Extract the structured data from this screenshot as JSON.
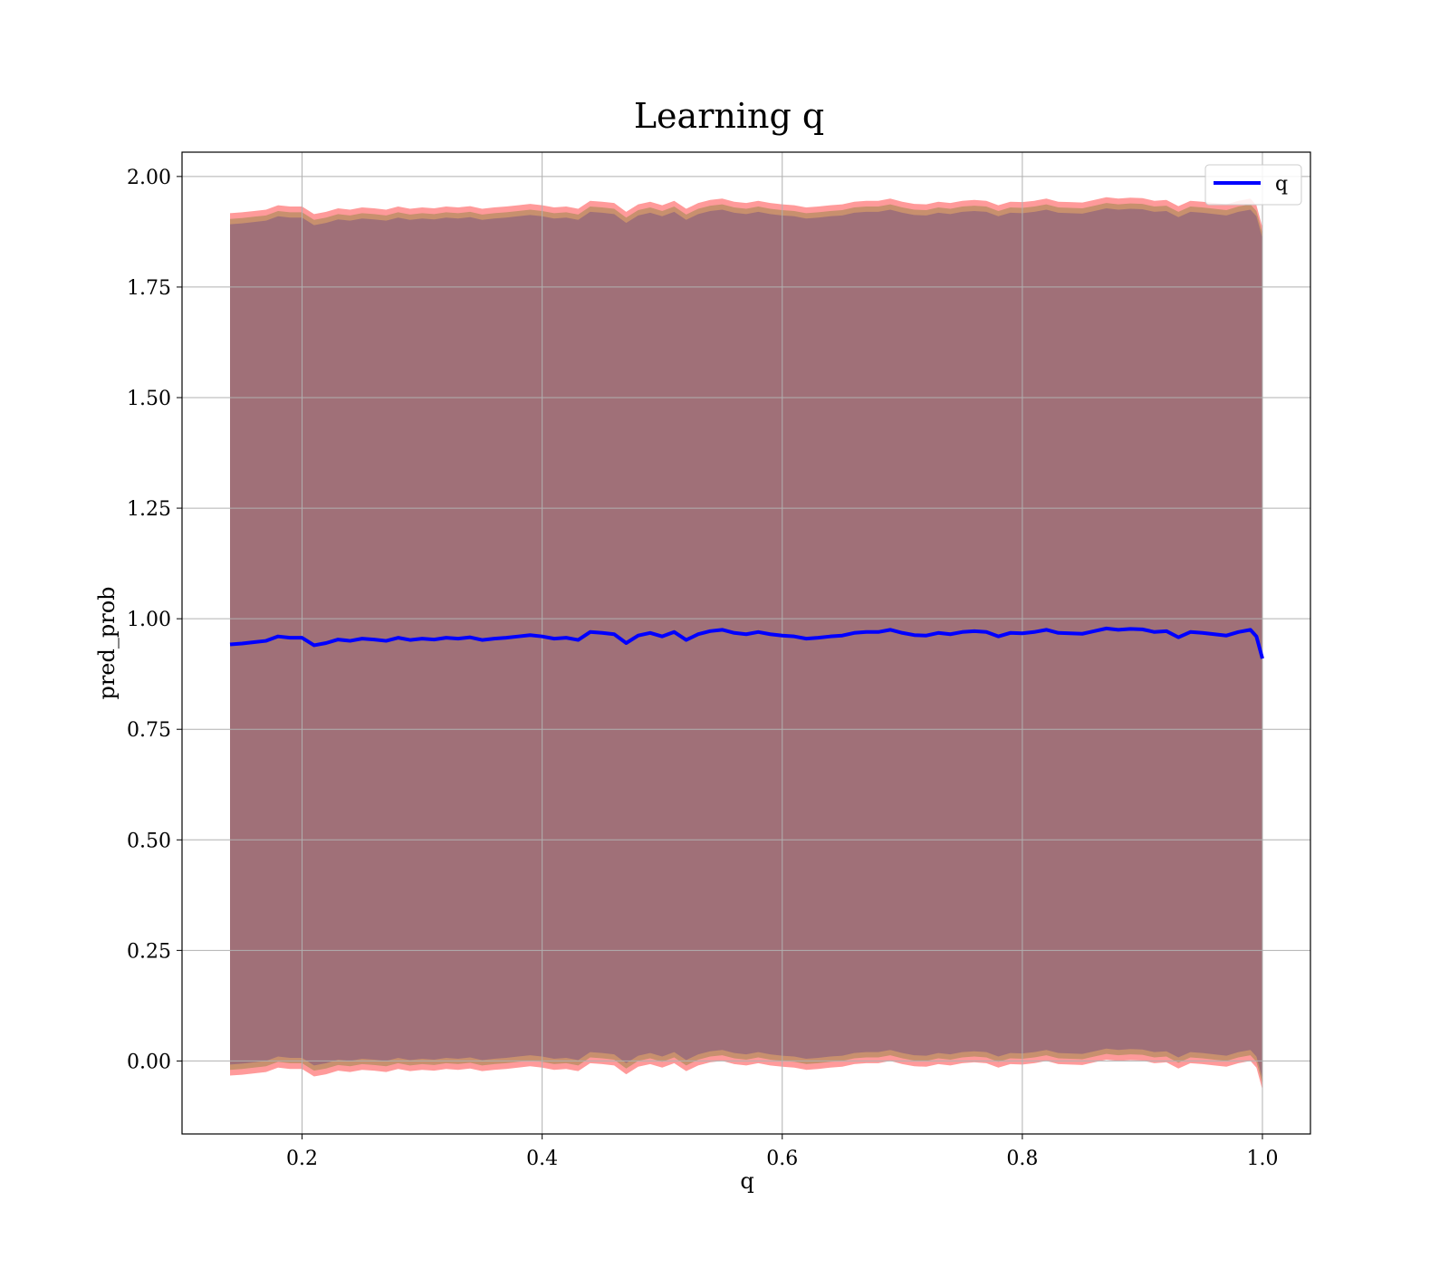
{
  "chart_data": {
    "type": "area",
    "title": "Learning q",
    "xlabel": "q",
    "ylabel": "pred_prob",
    "xlim": [
      0.1,
      1.04
    ],
    "ylim": [
      -0.165,
      2.055
    ],
    "x_ticks": [
      0.2,
      0.4,
      0.6,
      0.8,
      1.0
    ],
    "x_tick_labels": [
      "0.2",
      "0.4",
      "0.6",
      "0.8",
      "1.0"
    ],
    "y_ticks": [
      0.0,
      0.25,
      0.5,
      0.75,
      1.0,
      1.25,
      1.5,
      1.75,
      2.0
    ],
    "y_tick_labels": [
      "0.00",
      "0.25",
      "0.50",
      "0.75",
      "1.00",
      "1.25",
      "1.50",
      "1.75",
      "2.00"
    ],
    "grid": true,
    "legend_position": "top-right",
    "series": [
      {
        "name": "q",
        "color": "#0000ff",
        "x": [
          0.14,
          0.15,
          0.16,
          0.17,
          0.18,
          0.19,
          0.2,
          0.21,
          0.22,
          0.23,
          0.24,
          0.25,
          0.26,
          0.27,
          0.28,
          0.29,
          0.3,
          0.31,
          0.32,
          0.33,
          0.34,
          0.35,
          0.36,
          0.37,
          0.38,
          0.39,
          0.4,
          0.41,
          0.42,
          0.43,
          0.44,
          0.45,
          0.46,
          0.47,
          0.48,
          0.49,
          0.5,
          0.51,
          0.52,
          0.53,
          0.54,
          0.55,
          0.56,
          0.57,
          0.58,
          0.59,
          0.6,
          0.61,
          0.62,
          0.63,
          0.64,
          0.65,
          0.66,
          0.67,
          0.68,
          0.69,
          0.7,
          0.71,
          0.72,
          0.73,
          0.74,
          0.75,
          0.76,
          0.77,
          0.78,
          0.79,
          0.8,
          0.81,
          0.82,
          0.83,
          0.84,
          0.85,
          0.86,
          0.87,
          0.88,
          0.89,
          0.9,
          0.91,
          0.92,
          0.93,
          0.94,
          0.95,
          0.96,
          0.97,
          0.98,
          0.99,
          0.995,
          1.0
        ],
        "y": [
          0.942,
          0.944,
          0.947,
          0.95,
          0.96,
          0.957,
          0.957,
          0.94,
          0.945,
          0.953,
          0.95,
          0.955,
          0.953,
          0.95,
          0.957,
          0.952,
          0.955,
          0.953,
          0.957,
          0.955,
          0.958,
          0.952,
          0.955,
          0.957,
          0.96,
          0.963,
          0.96,
          0.955,
          0.957,
          0.952,
          0.97,
          0.968,
          0.965,
          0.945,
          0.962,
          0.968,
          0.96,
          0.97,
          0.952,
          0.965,
          0.972,
          0.975,
          0.968,
          0.965,
          0.97,
          0.965,
          0.962,
          0.96,
          0.955,
          0.957,
          0.96,
          0.962,
          0.968,
          0.97,
          0.97,
          0.975,
          0.968,
          0.963,
          0.962,
          0.968,
          0.965,
          0.97,
          0.972,
          0.97,
          0.96,
          0.968,
          0.967,
          0.97,
          0.975,
          0.968,
          0.967,
          0.966,
          0.972,
          0.978,
          0.975,
          0.977,
          0.976,
          0.97,
          0.972,
          0.958,
          0.97,
          0.968,
          0.965,
          0.962,
          0.97,
          0.975,
          0.96,
          0.91
        ]
      }
    ]
  },
  "colors": {
    "band_outer": "#ff9a9a",
    "band_middle": "#c8906e",
    "band_inner": "#a07078",
    "line": "#0000ff",
    "grid": "#b0b0b0"
  }
}
